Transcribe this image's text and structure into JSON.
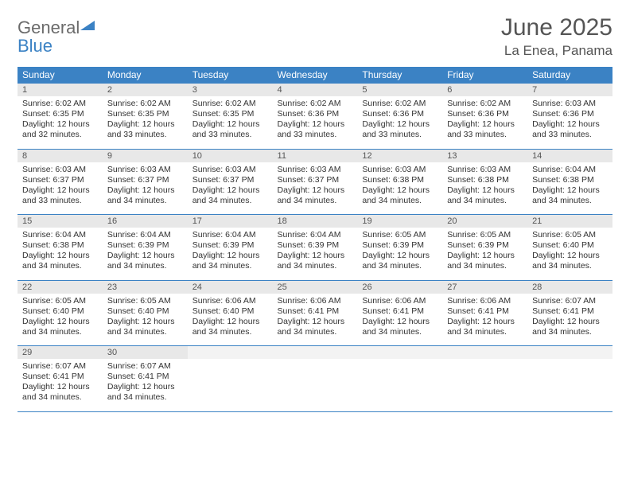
{
  "logo": {
    "word1": "General",
    "word2": "Blue"
  },
  "title": "June 2025",
  "location": "La Enea, Panama",
  "colors": {
    "header_bg": "#3b82c4",
    "header_text": "#ffffff",
    "daynum_bg": "#e8e8e8",
    "text": "#333333",
    "title_text": "#555555",
    "logo_gray": "#6b6b6b",
    "logo_blue": "#3b82c4",
    "border": "#3b82c4",
    "background": "#ffffff"
  },
  "typography": {
    "title_fontsize": 30,
    "location_fontsize": 17,
    "dayhead_fontsize": 12,
    "daynum_fontsize": 11,
    "body_fontsize": 10.5
  },
  "day_headers": [
    "Sunday",
    "Monday",
    "Tuesday",
    "Wednesday",
    "Thursday",
    "Friday",
    "Saturday"
  ],
  "weeks": [
    [
      {
        "n": "1",
        "sunrise": "6:02 AM",
        "sunset": "6:35 PM",
        "daylight": "12 hours and 32 minutes."
      },
      {
        "n": "2",
        "sunrise": "6:02 AM",
        "sunset": "6:35 PM",
        "daylight": "12 hours and 33 minutes."
      },
      {
        "n": "3",
        "sunrise": "6:02 AM",
        "sunset": "6:35 PM",
        "daylight": "12 hours and 33 minutes."
      },
      {
        "n": "4",
        "sunrise": "6:02 AM",
        "sunset": "6:36 PM",
        "daylight": "12 hours and 33 minutes."
      },
      {
        "n": "5",
        "sunrise": "6:02 AM",
        "sunset": "6:36 PM",
        "daylight": "12 hours and 33 minutes."
      },
      {
        "n": "6",
        "sunrise": "6:02 AM",
        "sunset": "6:36 PM",
        "daylight": "12 hours and 33 minutes."
      },
      {
        "n": "7",
        "sunrise": "6:03 AM",
        "sunset": "6:36 PM",
        "daylight": "12 hours and 33 minutes."
      }
    ],
    [
      {
        "n": "8",
        "sunrise": "6:03 AM",
        "sunset": "6:37 PM",
        "daylight": "12 hours and 33 minutes."
      },
      {
        "n": "9",
        "sunrise": "6:03 AM",
        "sunset": "6:37 PM",
        "daylight": "12 hours and 34 minutes."
      },
      {
        "n": "10",
        "sunrise": "6:03 AM",
        "sunset": "6:37 PM",
        "daylight": "12 hours and 34 minutes."
      },
      {
        "n": "11",
        "sunrise": "6:03 AM",
        "sunset": "6:37 PM",
        "daylight": "12 hours and 34 minutes."
      },
      {
        "n": "12",
        "sunrise": "6:03 AM",
        "sunset": "6:38 PM",
        "daylight": "12 hours and 34 minutes."
      },
      {
        "n": "13",
        "sunrise": "6:03 AM",
        "sunset": "6:38 PM",
        "daylight": "12 hours and 34 minutes."
      },
      {
        "n": "14",
        "sunrise": "6:04 AM",
        "sunset": "6:38 PM",
        "daylight": "12 hours and 34 minutes."
      }
    ],
    [
      {
        "n": "15",
        "sunrise": "6:04 AM",
        "sunset": "6:38 PM",
        "daylight": "12 hours and 34 minutes."
      },
      {
        "n": "16",
        "sunrise": "6:04 AM",
        "sunset": "6:39 PM",
        "daylight": "12 hours and 34 minutes."
      },
      {
        "n": "17",
        "sunrise": "6:04 AM",
        "sunset": "6:39 PM",
        "daylight": "12 hours and 34 minutes."
      },
      {
        "n": "18",
        "sunrise": "6:04 AM",
        "sunset": "6:39 PM",
        "daylight": "12 hours and 34 minutes."
      },
      {
        "n": "19",
        "sunrise": "6:05 AM",
        "sunset": "6:39 PM",
        "daylight": "12 hours and 34 minutes."
      },
      {
        "n": "20",
        "sunrise": "6:05 AM",
        "sunset": "6:39 PM",
        "daylight": "12 hours and 34 minutes."
      },
      {
        "n": "21",
        "sunrise": "6:05 AM",
        "sunset": "6:40 PM",
        "daylight": "12 hours and 34 minutes."
      }
    ],
    [
      {
        "n": "22",
        "sunrise": "6:05 AM",
        "sunset": "6:40 PM",
        "daylight": "12 hours and 34 minutes."
      },
      {
        "n": "23",
        "sunrise": "6:05 AM",
        "sunset": "6:40 PM",
        "daylight": "12 hours and 34 minutes."
      },
      {
        "n": "24",
        "sunrise": "6:06 AM",
        "sunset": "6:40 PM",
        "daylight": "12 hours and 34 minutes."
      },
      {
        "n": "25",
        "sunrise": "6:06 AM",
        "sunset": "6:41 PM",
        "daylight": "12 hours and 34 minutes."
      },
      {
        "n": "26",
        "sunrise": "6:06 AM",
        "sunset": "6:41 PM",
        "daylight": "12 hours and 34 minutes."
      },
      {
        "n": "27",
        "sunrise": "6:06 AM",
        "sunset": "6:41 PM",
        "daylight": "12 hours and 34 minutes."
      },
      {
        "n": "28",
        "sunrise": "6:07 AM",
        "sunset": "6:41 PM",
        "daylight": "12 hours and 34 minutes."
      }
    ],
    [
      {
        "n": "29",
        "sunrise": "6:07 AM",
        "sunset": "6:41 PM",
        "daylight": "12 hours and 34 minutes."
      },
      {
        "n": "30",
        "sunrise": "6:07 AM",
        "sunset": "6:41 PM",
        "daylight": "12 hours and 34 minutes."
      },
      null,
      null,
      null,
      null,
      null
    ]
  ],
  "labels": {
    "sunrise_prefix": "Sunrise: ",
    "sunset_prefix": "Sunset: ",
    "daylight_prefix": "Daylight: "
  }
}
